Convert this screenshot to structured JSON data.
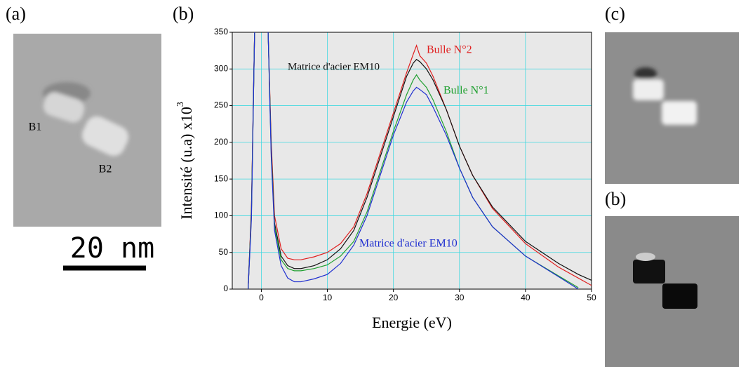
{
  "chart_data": {
    "type": "line",
    "xlabel": "Energie (eV)",
    "ylabel": "Intensité (u.a) x10",
    "ylabel_exponent": "3",
    "x": [
      -2,
      -1.5,
      -1,
      0,
      1,
      1.5,
      2,
      3,
      4,
      5,
      6,
      8,
      10,
      12,
      14,
      16,
      18,
      20,
      22,
      23,
      23.5,
      24,
      25,
      26,
      28,
      30,
      32,
      35,
      40,
      45,
      48,
      50
    ],
    "series": [
      {
        "name": "Bulle N°2",
        "color": "#e02020",
        "values": [
          0,
          110,
          360,
          500,
          360,
          200,
          100,
          55,
          42,
          40,
          40,
          44,
          50,
          62,
          85,
          130,
          185,
          240,
          295,
          320,
          332,
          318,
          308,
          290,
          245,
          195,
          155,
          110,
          62,
          30,
          15,
          5
        ]
      },
      {
        "name": "Matrice d'acier EM10",
        "color": "#111111",
        "values": [
          0,
          105,
          360,
          500,
          360,
          190,
          90,
          45,
          32,
          28,
          28,
          32,
          40,
          55,
          80,
          125,
          180,
          235,
          290,
          308,
          313,
          310,
          300,
          285,
          245,
          195,
          155,
          112,
          65,
          35,
          20,
          12
        ]
      },
      {
        "name": "Bulle N°1",
        "color": "#20a030",
        "values": [
          0,
          100,
          360,
          500,
          360,
          185,
          85,
          40,
          28,
          25,
          25,
          28,
          33,
          45,
          65,
          105,
          160,
          215,
          265,
          285,
          292,
          285,
          275,
          258,
          215,
          165,
          125,
          85,
          45,
          18,
          2,
          null
        ]
      },
      {
        "name": "Matrice d'acier EM10",
        "color": "#2030d0",
        "values": [
          0,
          95,
          360,
          500,
          360,
          180,
          80,
          32,
          15,
          10,
          10,
          14,
          20,
          35,
          60,
          100,
          155,
          210,
          255,
          270,
          275,
          272,
          265,
          248,
          210,
          165,
          125,
          85,
          45,
          17,
          0,
          null
        ]
      }
    ],
    "xlim": [
      -4.4,
      50
    ],
    "xticks": [
      0,
      10,
      20,
      30,
      40,
      50
    ],
    "ylim": [
      0,
      350
    ],
    "yticks": [
      0,
      50,
      100,
      150,
      200,
      250,
      300,
      350
    ],
    "grid": true,
    "grid_color": "#40d8e0",
    "background": "#e8e8e8"
  },
  "figure": {
    "panel_labels": [
      "(a)",
      "(b)",
      "(c)",
      "(b)"
    ],
    "particle_labels": [
      "B1",
      "B2"
    ],
    "scale_bar": "20 nm"
  }
}
